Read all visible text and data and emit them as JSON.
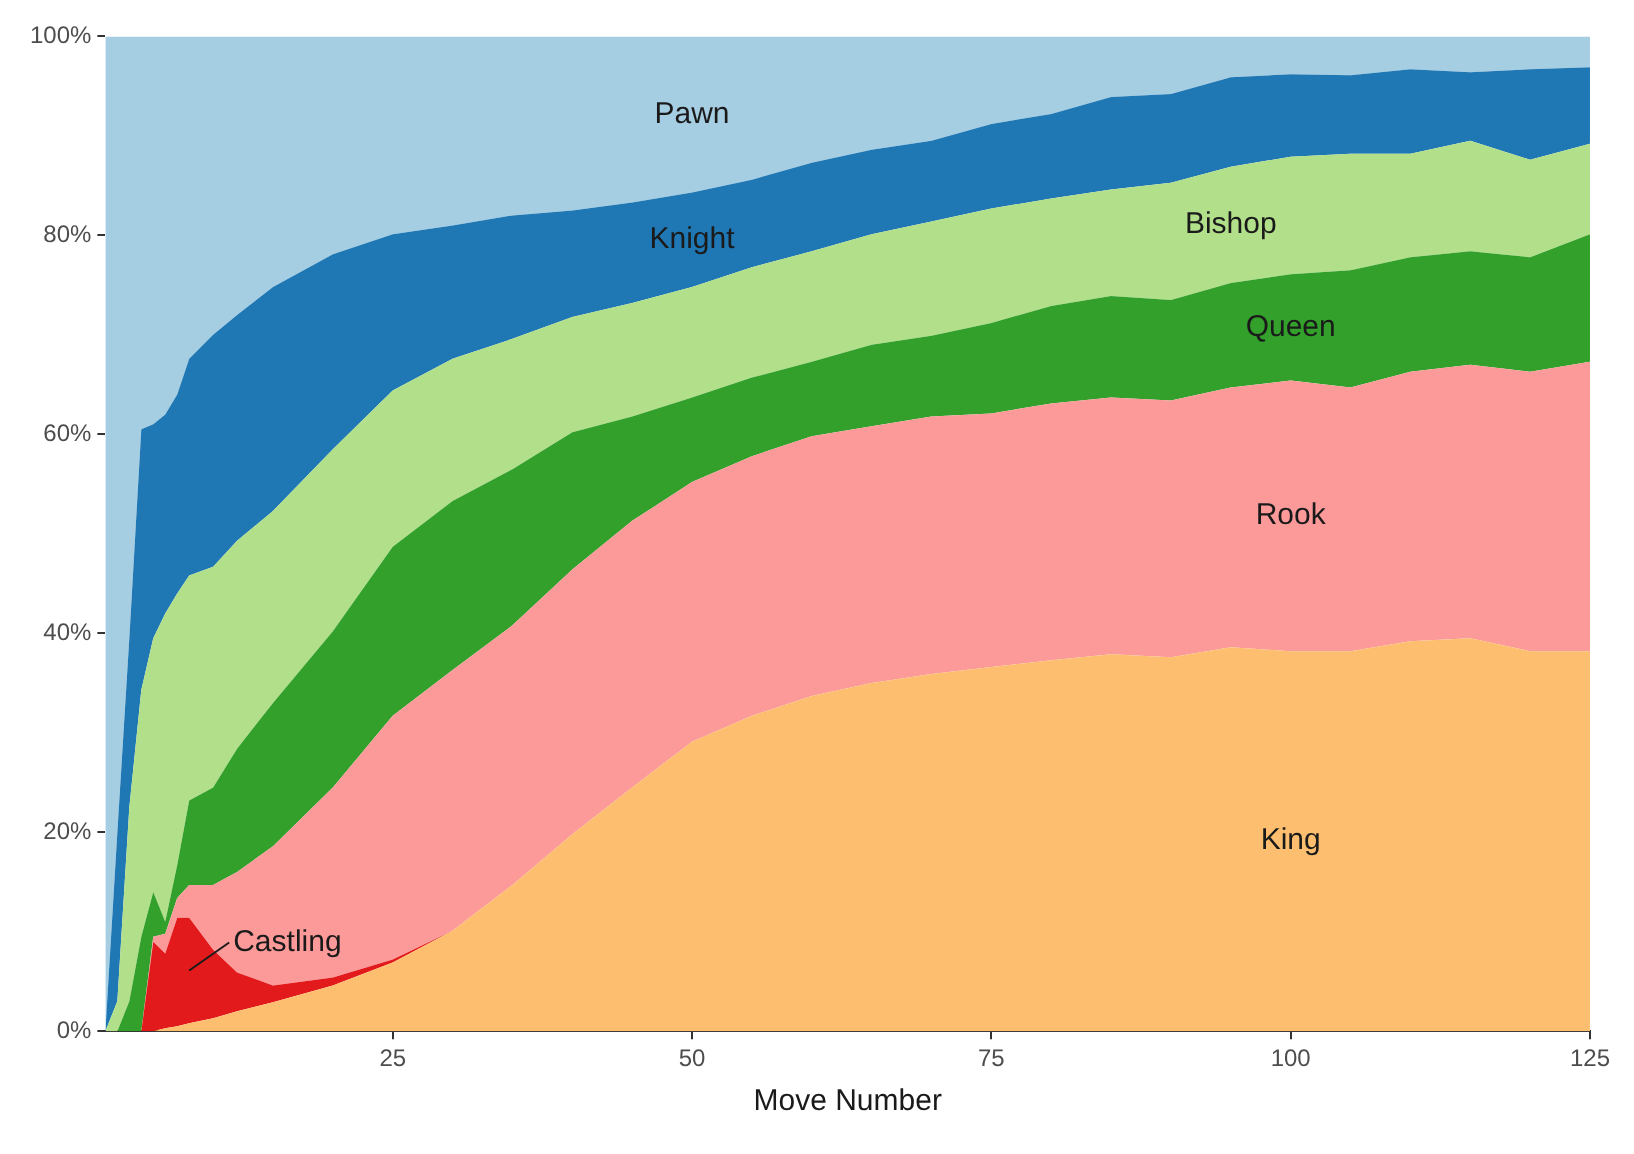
{
  "chart_data": {
    "type": "area",
    "stacked": true,
    "xlabel": "Move Number",
    "x": [
      1,
      2,
      3,
      4,
      5,
      6,
      7,
      8,
      10,
      12,
      15,
      20,
      25,
      30,
      35,
      40,
      45,
      50,
      55,
      60,
      65,
      70,
      75,
      80,
      85,
      90,
      95,
      100,
      105,
      110,
      115,
      120,
      125
    ],
    "xlim": [
      1,
      125
    ],
    "xticks": [
      25,
      50,
      75,
      100,
      125
    ],
    "ylim": [
      0,
      100
    ],
    "yticks": [
      {
        "value": 0,
        "label": "0%"
      },
      {
        "value": 20,
        "label": "20%"
      },
      {
        "value": 40,
        "label": "40%"
      },
      {
        "value": 60,
        "label": "60%"
      },
      {
        "value": 80,
        "label": "80%"
      },
      {
        "value": 100,
        "label": "100%"
      }
    ],
    "grid": false,
    "legend": false,
    "series": [
      {
        "name": "King",
        "color": "#fdbf6f",
        "values": [
          0,
          0,
          0,
          0,
          0,
          0.3,
          0.5,
          0.8,
          1.3,
          2,
          2.9,
          4.6,
          6.9,
          10.1,
          14.7,
          19.8,
          24.5,
          29.1,
          31.7,
          33.7,
          35,
          35.9,
          36.6,
          37.3,
          37.9,
          37.6,
          38.6,
          38.2,
          38.2,
          39.2,
          39.5,
          38.2,
          38.2
        ]
      },
      {
        "name": "Castling",
        "color": "#e31a1c",
        "values": [
          null,
          null,
          null,
          0,
          9,
          7.5,
          10.9,
          10.6,
          6.9,
          3.9,
          1.7,
          0.8,
          0.3,
          0,
          null,
          null,
          null,
          null,
          null,
          null,
          null,
          null,
          null,
          null,
          null,
          null,
          null,
          null,
          null,
          null,
          null,
          null,
          null
        ]
      },
      {
        "name": "Rook",
        "color": "#fb9a99",
        "values": [
          0,
          0,
          0,
          0,
          0.5,
          2,
          2,
          3.3,
          6.5,
          10.1,
          14,
          19.1,
          24.5,
          26.2,
          26.1,
          26.6,
          26.8,
          26.1,
          26.1,
          26.1,
          25.8,
          25.9,
          25.5,
          25.8,
          25.8,
          25.8,
          26.1,
          27.2,
          26.5,
          27.1,
          27.5,
          28.1,
          29.1
        ]
      },
      {
        "name": "Queen",
        "color": "#33a02c",
        "values": [
          0,
          0,
          3,
          9.5,
          4.5,
          1.2,
          3.3,
          8.5,
          9.8,
          12.4,
          14.4,
          15.7,
          17,
          17,
          15.7,
          13.8,
          10.5,
          8.5,
          7.9,
          7.5,
          8.2,
          8.1,
          9.1,
          9.8,
          10.2,
          10.1,
          10.5,
          10.7,
          11.8,
          11.5,
          11.4,
          11.5,
          12.8
        ]
      },
      {
        "name": "Bishop",
        "color": "#b2df8a",
        "values": [
          0,
          3,
          19.5,
          24.8,
          25.5,
          31,
          27.3,
          22.6,
          22.2,
          20.9,
          19.3,
          18.3,
          15.7,
          14.3,
          13.1,
          11.6,
          11.4,
          11.1,
          11.1,
          11.1,
          11.1,
          11.5,
          11.5,
          10.8,
          10.7,
          11.8,
          11.7,
          11.8,
          11.7,
          10.4,
          11.1,
          9.8,
          9.1
        ]
      },
      {
        "name": "Knight",
        "color": "#1f78b4",
        "values": [
          0,
          17,
          17,
          26.2,
          21.5,
          20,
          20,
          21.8,
          23.3,
          22.7,
          22.5,
          19.6,
          15.7,
          13.4,
          12.4,
          10.7,
          10.1,
          9.5,
          8.8,
          8.9,
          8.5,
          8.1,
          8.5,
          8.5,
          9.3,
          8.9,
          9,
          8.3,
          7.9,
          8.5,
          6.9,
          9.1,
          7.7
        ]
      },
      {
        "name": "Pawn",
        "color": "#a6cee3",
        "values": [
          100,
          80,
          60.5,
          39.5,
          39,
          38,
          36,
          32.4,
          30,
          28,
          25.2,
          21.9,
          19.9,
          19,
          18,
          17.5,
          16.7,
          15.7,
          14.4,
          12.7,
          11.4,
          10.5,
          8.8,
          7.8,
          6.1,
          5.8,
          4.1,
          3.8,
          3.9,
          3.3,
          3.6,
          3.3,
          3.1
        ]
      }
    ]
  }
}
